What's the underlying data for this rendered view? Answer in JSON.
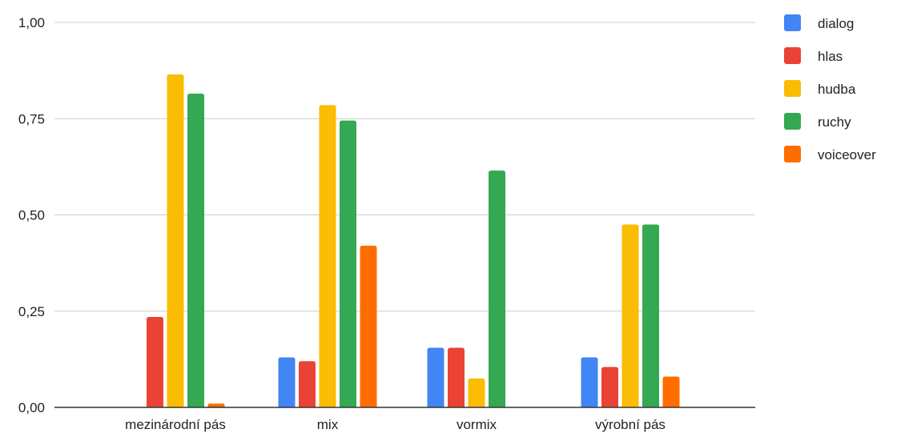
{
  "chart_data": {
    "type": "bar",
    "title": "",
    "xlabel": "",
    "ylabel": "",
    "ylim": [
      0,
      1
    ],
    "y_ticks": [
      "0,00",
      "0,25",
      "0,50",
      "0,75",
      "1,00"
    ],
    "y_tick_values": [
      0,
      0.25,
      0.5,
      0.75,
      1.0
    ],
    "grid": true,
    "legend_position": "right",
    "categories": [
      "mezinárodní pás",
      "mix",
      "vormix",
      "výrobní pás"
    ],
    "series": [
      {
        "name": "dialog",
        "color": "#4285F4",
        "values": [
          0,
          0.13,
          0.155,
          0.13
        ]
      },
      {
        "name": "hlas",
        "color": "#EA4335",
        "values": [
          0.235,
          0.12,
          0.155,
          0.105
        ]
      },
      {
        "name": "hudba",
        "color": "#FBBC04",
        "values": [
          0.865,
          0.785,
          0.075,
          0.475
        ]
      },
      {
        "name": "ruchy",
        "color": "#34A853",
        "values": [
          0.815,
          0.745,
          0.615,
          0.475
        ]
      },
      {
        "name": "voiceover",
        "color": "#FF6D01",
        "values": [
          0.01,
          0.42,
          0,
          0.08
        ]
      }
    ]
  }
}
